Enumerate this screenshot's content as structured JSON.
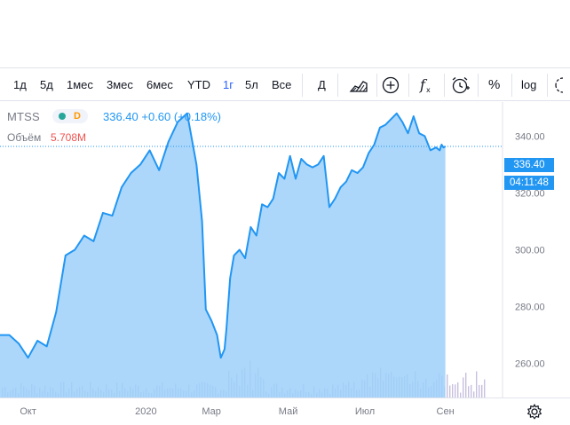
{
  "toolbar": {
    "ranges": [
      {
        "label": "1д"
      },
      {
        "label": "5д"
      },
      {
        "label": "1мес"
      },
      {
        "label": "3мес"
      },
      {
        "label": "6мес"
      },
      {
        "label": "YTD"
      },
      {
        "label": "1г",
        "active": true
      },
      {
        "label": "5л"
      },
      {
        "label": "Все"
      }
    ],
    "date_label": "Д",
    "percent_label": "%",
    "log_label": "log"
  },
  "legend": {
    "symbol": "MTSS",
    "badge_letter": "D",
    "price_line": "336.40 +0.60 (+0.18%)",
    "volume_label": "Объём",
    "volume_value": "5.708M"
  },
  "colors": {
    "line": "#2196f3",
    "area": "#9ed0fa",
    "green_dot": "#26a69a",
    "orange_dot": "#ff9800",
    "volume": "#b6a9d4"
  },
  "price_tag": "336.40",
  "time_tag": "04:11:48",
  "chart_data": {
    "type": "area",
    "title": "MTSS",
    "ylim": [
      248,
      352
    ],
    "yticks": [
      260,
      280,
      300,
      320,
      340
    ],
    "ytick_labels": [
      "260.00",
      "280.00",
      "300.00",
      "320.00",
      "340.00"
    ],
    "xlim": [
      0,
      260
    ],
    "xticks": [
      {
        "label": "Окт",
        "at": 15
      },
      {
        "label": "2020",
        "at": 78
      },
      {
        "label": "Мар",
        "at": 113
      },
      {
        "label": "Май",
        "at": 154
      },
      {
        "label": "Июл",
        "at": 195
      },
      {
        "label": "Сен",
        "at": 238
      }
    ],
    "x": [
      0,
      5,
      10,
      15,
      20,
      25,
      30,
      35,
      40,
      45,
      50,
      55,
      60,
      65,
      70,
      75,
      80,
      85,
      90,
      95,
      100,
      105,
      108,
      110,
      113,
      116,
      118,
      120,
      121,
      123,
      125,
      128,
      131,
      134,
      137,
      140,
      143,
      146,
      149,
      152,
      155,
      158,
      161,
      164,
      167,
      170,
      173,
      176,
      179,
      182,
      185,
      188,
      191,
      194,
      197,
      200,
      203,
      206,
      209,
      212,
      215,
      218,
      221,
      224,
      227,
      230,
      233,
      235,
      236,
      237,
      238
    ],
    "series": [
      {
        "name": "MTSS",
        "values": [
          270,
          270,
          267,
          262,
          268,
          266,
          278,
          298,
          300,
          305,
          303,
          313,
          312,
          322,
          327,
          330,
          335,
          328,
          338,
          345,
          348,
          330,
          310,
          279,
          275,
          270,
          262,
          265,
          272,
          290,
          298,
          300,
          297,
          308,
          305,
          316,
          315,
          318,
          327,
          325,
          333,
          325,
          332,
          330,
          329,
          330,
          333,
          315,
          318,
          322,
          324,
          328,
          327,
          329,
          334,
          337,
          343,
          344,
          346,
          348,
          345,
          341,
          347,
          341,
          340,
          335,
          336,
          335,
          337,
          336,
          336.4
        ]
      }
    ],
    "volume": {
      "name": "Объём",
      "value": "5.708M"
    }
  }
}
